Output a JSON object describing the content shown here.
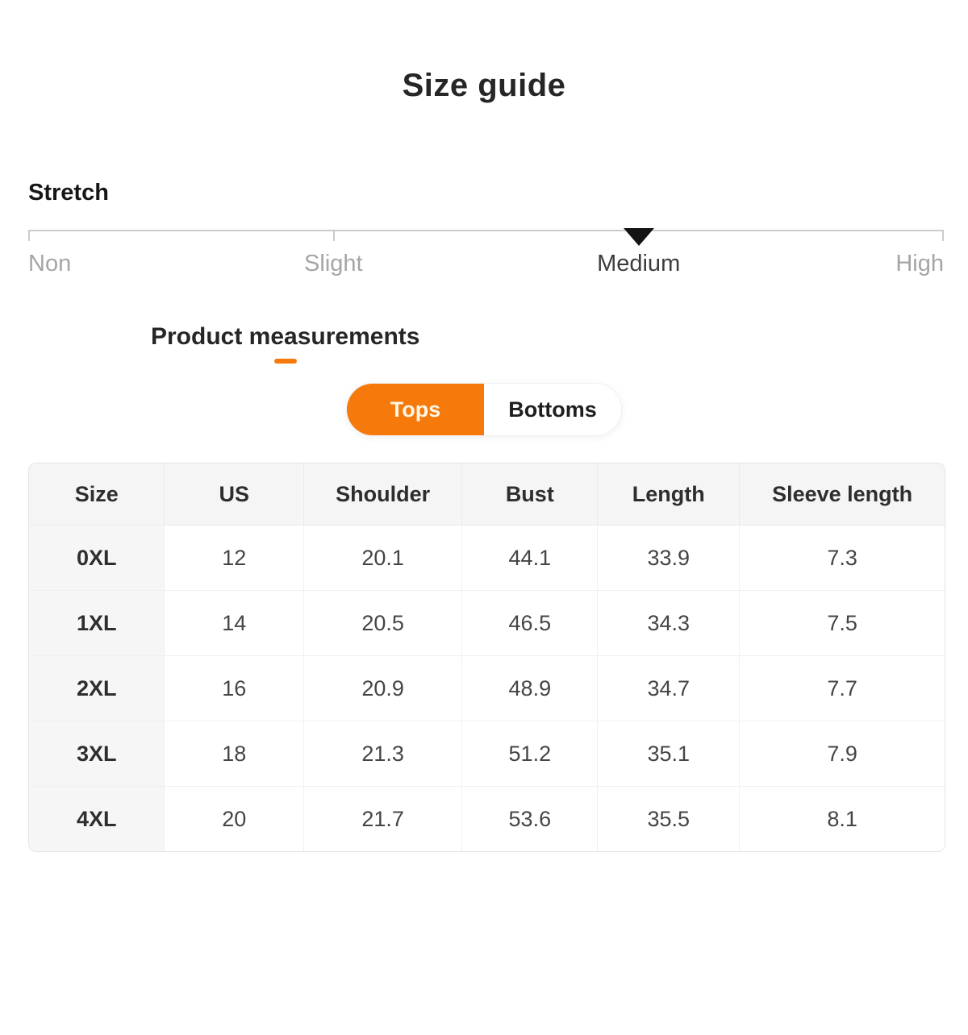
{
  "page": {
    "title": "Size guide"
  },
  "colors": {
    "accent_orange": "#f5790b",
    "tops_text_cream": "#fff6e3",
    "marker_black": "#141414"
  },
  "stretch": {
    "label": "Stretch",
    "selected_index": 2,
    "options": [
      {
        "label": "Non",
        "selected": false
      },
      {
        "label": "Slight",
        "selected": false
      },
      {
        "label": "Medium",
        "selected": true
      },
      {
        "label": "High",
        "selected": false
      }
    ]
  },
  "measurements": {
    "heading": "Product measurements",
    "tabs": [
      {
        "label": "Tops",
        "active": true
      },
      {
        "label": "Bottoms",
        "active": false
      }
    ]
  },
  "table": {
    "columns": [
      "Size",
      "US",
      "Shoulder",
      "Bust",
      "Length",
      "Sleeve length"
    ],
    "rows": [
      [
        "0XL",
        "12",
        "20.1",
        "44.1",
        "33.9",
        "7.3"
      ],
      [
        "1XL",
        "14",
        "20.5",
        "46.5",
        "34.3",
        "7.5"
      ],
      [
        "2XL",
        "16",
        "20.9",
        "48.9",
        "34.7",
        "7.7"
      ],
      [
        "3XL",
        "18",
        "21.3",
        "51.2",
        "35.1",
        "7.9"
      ],
      [
        "4XL",
        "20",
        "21.7",
        "53.6",
        "35.5",
        "8.1"
      ]
    ]
  }
}
